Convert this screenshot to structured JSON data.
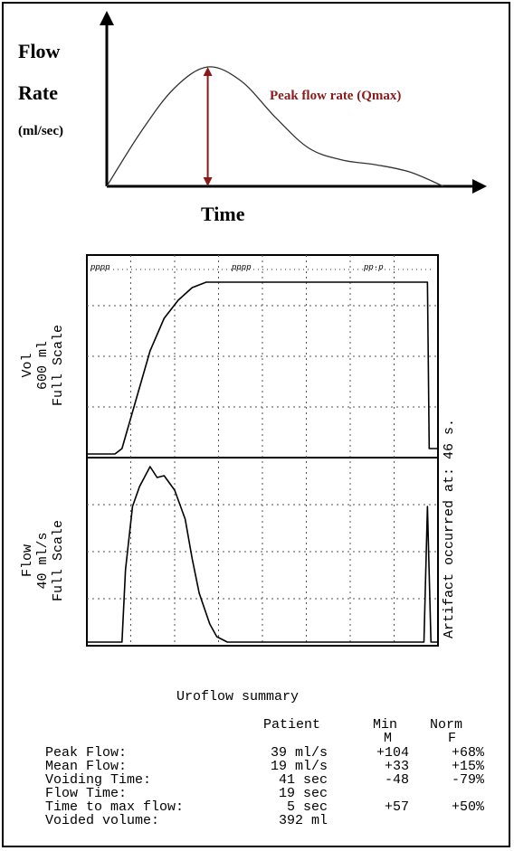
{
  "chart_data": [
    {
      "type": "line",
      "title": "",
      "ylabel_lines": [
        "Flow",
        "Rate",
        "(ml/sec)"
      ],
      "xlabel": "Time",
      "annotation": "Peak flow rate (Qmax)",
      "annotation_color": "#8b1a1a",
      "x": [
        0,
        10,
        20,
        30,
        40,
        50,
        60,
        70,
        80,
        90,
        100
      ],
      "y": [
        0,
        45,
        82,
        100,
        88,
        58,
        32,
        22,
        18,
        12,
        0
      ],
      "peak": {
        "x": 30,
        "y": 100
      }
    },
    {
      "type": "line",
      "title": "",
      "panels": [
        {
          "name": "vol",
          "ylabel_lines": [
            "Vol",
            "600 ml",
            "Full Scale"
          ],
          "x": [
            0,
            5,
            8,
            10,
            14,
            18,
            22,
            26,
            30,
            34,
            40,
            60,
            80,
            95,
            97,
            97.5,
            98,
            100
          ],
          "y": [
            0,
            0,
            0,
            3,
            30,
            57,
            75,
            85,
            92,
            95,
            95,
            95,
            95,
            95,
            95,
            3,
            3,
            3
          ]
        },
        {
          "name": "flow",
          "ylabel_lines": [
            "Flow",
            "40 ml/s",
            "Full Scale"
          ],
          "x": [
            0,
            10,
            11,
            13,
            15,
            18,
            20,
            22,
            25,
            28,
            30,
            32,
            35,
            37,
            40,
            44,
            50,
            60,
            80,
            96,
            97,
            98,
            100
          ],
          "y": [
            0,
            0,
            40,
            75,
            86,
            97,
            91,
            92,
            84,
            68,
            46,
            27,
            10,
            3,
            0,
            0,
            0,
            0,
            0,
            0,
            75,
            0,
            0
          ]
        }
      ],
      "right_label": "Artifact occurred at:  46 s.",
      "markers": [
        "pppp",
        "pppp",
        "pp·p"
      ]
    }
  ],
  "summary": {
    "title": "Uroflow summary",
    "col_patient": "Patient",
    "col_min": "Min",
    "col_min_sub": "M",
    "col_norm": "Norm",
    "col_norm_sub": "F",
    "rows": [
      {
        "label": "Peak Flow:",
        "patient": "39 ml/s",
        "min": "+104",
        "norm": "+68%"
      },
      {
        "label": "Mean Flow:",
        "patient": "19 ml/s",
        "min": "+33",
        "norm": "+15%"
      },
      {
        "label": "Voiding Time:",
        "patient": "41 sec",
        "min": "-48",
        "norm": "-79%"
      },
      {
        "label": "Flow Time:",
        "patient": "19 sec",
        "min": "",
        "norm": ""
      },
      {
        "label": "Time to max flow:",
        "patient": "5 sec",
        "min": "+57",
        "norm": "+50%"
      },
      {
        "label": "Voided volume:",
        "patient": "392 ml",
        "min": "",
        "norm": ""
      }
    ]
  }
}
